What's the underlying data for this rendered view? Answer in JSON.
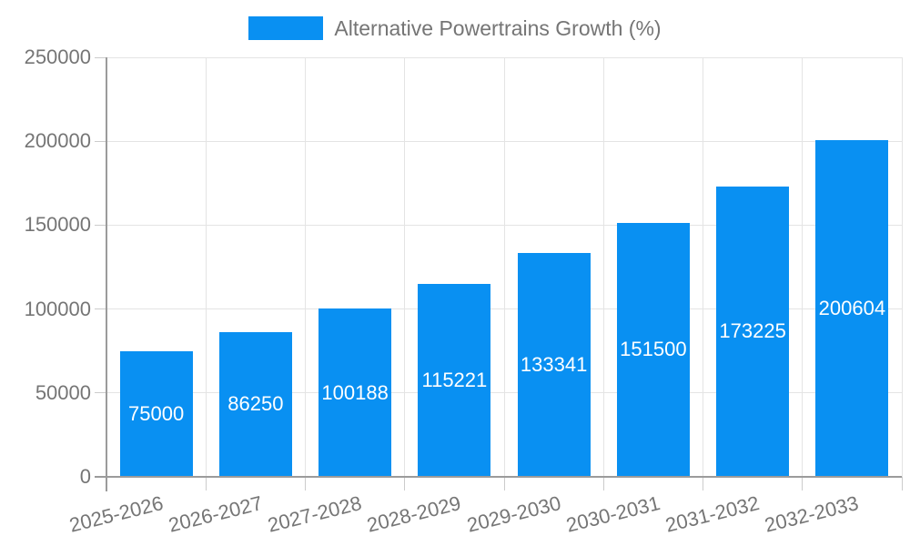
{
  "legend": {
    "label": "Alternative Powertrains Growth (%)"
  },
  "colors": {
    "bar": "#0990f2",
    "grid": "#e4e4e4",
    "axis": "#9b9b9b",
    "tick": "#cccccc",
    "text": "#757575",
    "value_text": "#ffffff",
    "background": "#ffffff"
  },
  "chart_data": {
    "type": "bar",
    "title": "",
    "legend_entries": [
      "Alternative Powertrains Growth (%)"
    ],
    "legend_position": "top-center",
    "categories": [
      "2025-2026",
      "2026-2027",
      "2027-2028",
      "2028-2029",
      "2029-2030",
      "2030-2031",
      "2031-2032",
      "2032-2033"
    ],
    "values": [
      75000,
      86250,
      100188,
      115221,
      133341,
      151500,
      173225,
      200604
    ],
    "value_labels_shown": true,
    "value_label_position": "inside-center",
    "xlabel": "",
    "ylabel": "",
    "ylim": [
      0,
      250000
    ],
    "yticks": [
      0,
      50000,
      100000,
      150000,
      200000,
      250000
    ],
    "grid": true,
    "x_tick_label_rotation_deg": -14
  }
}
